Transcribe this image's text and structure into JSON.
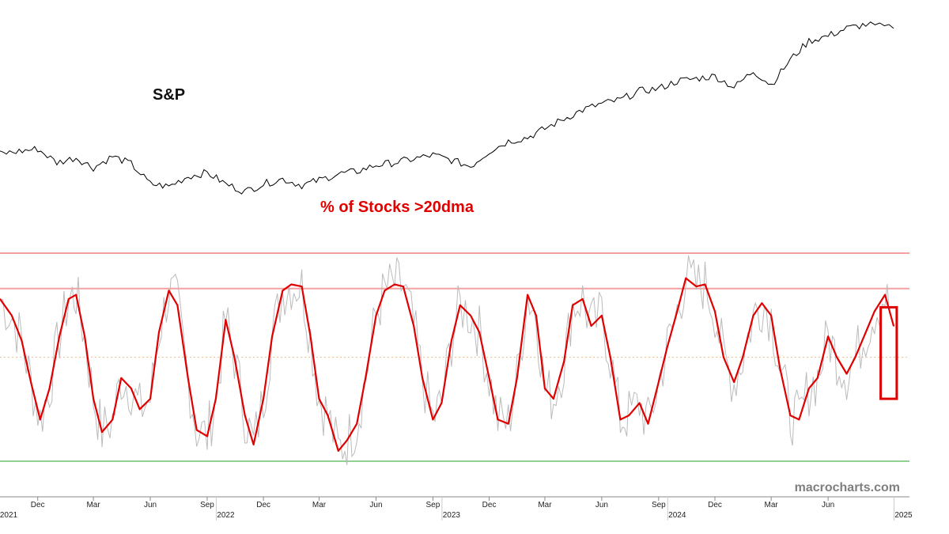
{
  "chart_data": {
    "type": "line",
    "upper_label": "S&P",
    "lower_label": "% of Stocks >20dma",
    "watermark": "macrocharts.com",
    "x_axis": {
      "month_ticks": [
        {
          "label": "Dec",
          "date": "2020-12-01"
        },
        {
          "label": "Mar",
          "date": "2021-03-01"
        },
        {
          "label": "Jun",
          "date": "2021-06-01"
        },
        {
          "label": "Sep",
          "date": "2021-09-01"
        },
        {
          "label": "Dec",
          "date": "2021-12-01"
        },
        {
          "label": "Mar",
          "date": "2022-03-01"
        },
        {
          "label": "Jun",
          "date": "2022-06-01"
        },
        {
          "label": "Sep",
          "date": "2022-09-01"
        },
        {
          "label": "Dec",
          "date": "2022-12-01"
        },
        {
          "label": "Mar",
          "date": "2023-03-01"
        },
        {
          "label": "Jun",
          "date": "2023-06-01"
        },
        {
          "label": "Sep",
          "date": "2023-09-01"
        },
        {
          "label": "Dec",
          "date": "2023-12-01"
        },
        {
          "label": "Mar",
          "date": "2024-03-01"
        },
        {
          "label": "Jun",
          "date": "2024-06-01"
        }
      ],
      "year_ticks": [
        {
          "label": "2021",
          "date": "2020-10-15"
        },
        {
          "label": "2022",
          "date": "2021-10-01"
        },
        {
          "label": "2023",
          "date": "2022-10-01"
        },
        {
          "label": "2024",
          "date": "2023-10-01"
        },
        {
          "label": "2025",
          "date": "2024-10-01"
        }
      ],
      "range": [
        "2020-10-01",
        "2024-09-15"
      ]
    },
    "sp_series": {
      "name": "S&P",
      "points": [
        [
          "2020-10-01",
          3800
        ],
        [
          "2020-11-01",
          3820
        ],
        [
          "2020-12-01",
          3840
        ],
        [
          "2021-01-01",
          3730
        ],
        [
          "2021-02-01",
          3770
        ],
        [
          "2021-03-01",
          3690
        ],
        [
          "2021-04-01",
          3780
        ],
        [
          "2021-05-01",
          3720
        ],
        [
          "2021-06-01",
          3560
        ],
        [
          "2021-07-01",
          3540
        ],
        [
          "2021-08-01",
          3620
        ],
        [
          "2021-09-01",
          3650
        ],
        [
          "2021-10-01",
          3560
        ],
        [
          "2021-11-01",
          3500
        ],
        [
          "2021-12-01",
          3560
        ],
        [
          "2022-01-01",
          3600
        ],
        [
          "2022-02-01",
          3550
        ],
        [
          "2022-03-01",
          3590
        ],
        [
          "2022-04-01",
          3640
        ],
        [
          "2022-05-01",
          3660
        ],
        [
          "2022-06-01",
          3710
        ],
        [
          "2022-07-01",
          3730
        ],
        [
          "2022-08-01",
          3760
        ],
        [
          "2022-09-01",
          3790
        ],
        [
          "2022-10-01",
          3750
        ],
        [
          "2022-11-01",
          3700
        ],
        [
          "2022-12-01",
          3820
        ],
        [
          "2023-01-01",
          3900
        ],
        [
          "2023-02-01",
          3930
        ],
        [
          "2023-03-01",
          4000
        ],
        [
          "2023-04-01",
          4080
        ],
        [
          "2023-05-01",
          4150
        ],
        [
          "2023-06-01",
          4200
        ],
        [
          "2023-07-01",
          4230
        ],
        [
          "2023-08-01",
          4300
        ],
        [
          "2023-09-01",
          4320
        ],
        [
          "2023-10-01",
          4380
        ],
        [
          "2023-11-01",
          4400
        ],
        [
          "2023-12-01",
          4420
        ],
        [
          "2024-01-01",
          4330
        ],
        [
          "2024-02-01",
          4460
        ],
        [
          "2024-03-01",
          4350
        ],
        [
          "2024-04-01",
          4550
        ],
        [
          "2024-05-01",
          4700
        ],
        [
          "2024-06-01",
          4740
        ],
        [
          "2024-07-01",
          4800
        ],
        [
          "2024-08-01",
          4830
        ],
        [
          "2024-09-15",
          4800
        ]
      ]
    },
    "breadth_series": {
      "name": "% of Stocks >20dma",
      "smoothed_color": "#e00000",
      "raw_color": "#bbbbbb",
      "points": [
        [
          "2020-10-01",
          78
        ],
        [
          "2020-10-20",
          70
        ],
        [
          "2020-11-05",
          58
        ],
        [
          "2020-11-20",
          38
        ],
        [
          "2020-12-05",
          20
        ],
        [
          "2020-12-20",
          35
        ],
        [
          "2021-01-05",
          60
        ],
        [
          "2021-01-20",
          78
        ],
        [
          "2021-02-01",
          80
        ],
        [
          "2021-02-15",
          60
        ],
        [
          "2021-03-01",
          30
        ],
        [
          "2021-03-15",
          14
        ],
        [
          "2021-04-01",
          20
        ],
        [
          "2021-04-15",
          40
        ],
        [
          "2021-05-01",
          35
        ],
        [
          "2021-05-15",
          25
        ],
        [
          "2021-06-01",
          30
        ],
        [
          "2021-06-15",
          62
        ],
        [
          "2021-07-01",
          82
        ],
        [
          "2021-07-15",
          75
        ],
        [
          "2021-08-01",
          40
        ],
        [
          "2021-08-15",
          15
        ],
        [
          "2021-09-01",
          12
        ],
        [
          "2021-09-15",
          30
        ],
        [
          "2021-10-01",
          68
        ],
        [
          "2021-10-15",
          50
        ],
        [
          "2021-11-01",
          22
        ],
        [
          "2021-11-15",
          8
        ],
        [
          "2021-12-01",
          30
        ],
        [
          "2021-12-15",
          60
        ],
        [
          "2022-01-01",
          82
        ],
        [
          "2022-01-15",
          85
        ],
        [
          "2022-02-01",
          84
        ],
        [
          "2022-02-15",
          60
        ],
        [
          "2022-03-01",
          30
        ],
        [
          "2022-03-15",
          22
        ],
        [
          "2022-04-01",
          5
        ],
        [
          "2022-04-15",
          10
        ],
        [
          "2022-05-01",
          18
        ],
        [
          "2022-05-15",
          40
        ],
        [
          "2022-06-01",
          70
        ],
        [
          "2022-06-15",
          82
        ],
        [
          "2022-07-01",
          85
        ],
        [
          "2022-07-15",
          84
        ],
        [
          "2022-08-01",
          65
        ],
        [
          "2022-08-15",
          40
        ],
        [
          "2022-09-01",
          20
        ],
        [
          "2022-09-15",
          28
        ],
        [
          "2022-10-01",
          58
        ],
        [
          "2022-10-15",
          75
        ],
        [
          "2022-11-01",
          70
        ],
        [
          "2022-11-15",
          62
        ],
        [
          "2022-12-01",
          40
        ],
        [
          "2022-12-15",
          20
        ],
        [
          "2023-01-01",
          18
        ],
        [
          "2023-01-15",
          40
        ],
        [
          "2023-02-01",
          80
        ],
        [
          "2023-02-15",
          70
        ],
        [
          "2023-03-01",
          35
        ],
        [
          "2023-03-15",
          30
        ],
        [
          "2023-04-01",
          48
        ],
        [
          "2023-04-15",
          75
        ],
        [
          "2023-05-01",
          78
        ],
        [
          "2023-05-15",
          65
        ],
        [
          "2023-06-01",
          70
        ],
        [
          "2023-06-15",
          50
        ],
        [
          "2023-07-01",
          20
        ],
        [
          "2023-07-15",
          22
        ],
        [
          "2023-08-01",
          28
        ],
        [
          "2023-08-15",
          18
        ],
        [
          "2023-09-01",
          38
        ],
        [
          "2023-09-15",
          55
        ],
        [
          "2023-10-01",
          72
        ],
        [
          "2023-10-15",
          88
        ],
        [
          "2023-11-01",
          84
        ],
        [
          "2023-11-15",
          85
        ],
        [
          "2023-12-01",
          72
        ],
        [
          "2023-12-15",
          50
        ],
        [
          "2024-01-01",
          38
        ],
        [
          "2024-01-15",
          50
        ],
        [
          "2024-02-01",
          70
        ],
        [
          "2024-02-15",
          76
        ],
        [
          "2024-03-01",
          70
        ],
        [
          "2024-03-15",
          45
        ],
        [
          "2024-04-01",
          22
        ],
        [
          "2024-04-15",
          20
        ],
        [
          "2024-05-01",
          35
        ],
        [
          "2024-05-15",
          40
        ],
        [
          "2024-06-01",
          60
        ],
        [
          "2024-06-15",
          50
        ],
        [
          "2024-07-01",
          42
        ],
        [
          "2024-07-15",
          50
        ],
        [
          "2024-08-01",
          62
        ],
        [
          "2024-08-15",
          72
        ],
        [
          "2024-09-01",
          80
        ],
        [
          "2024-09-15",
          65
        ]
      ]
    },
    "reference_lines": [
      {
        "name": "upper-band",
        "value": 100,
        "color": "#f4a0a0"
      },
      {
        "name": "overbought",
        "value": 83,
        "color": "#f4a0a0"
      },
      {
        "name": "midline",
        "value": 50,
        "color": "#f5c08a",
        "style": "dotted"
      },
      {
        "name": "oversold",
        "value": 0,
        "color": "#90d090"
      }
    ],
    "highlight_box": {
      "color": "#e00000",
      "date_start": "2024-08-25",
      "date_end": "2024-09-20",
      "value_low": 30,
      "value_high": 74
    },
    "grid": false,
    "legend": "none"
  }
}
